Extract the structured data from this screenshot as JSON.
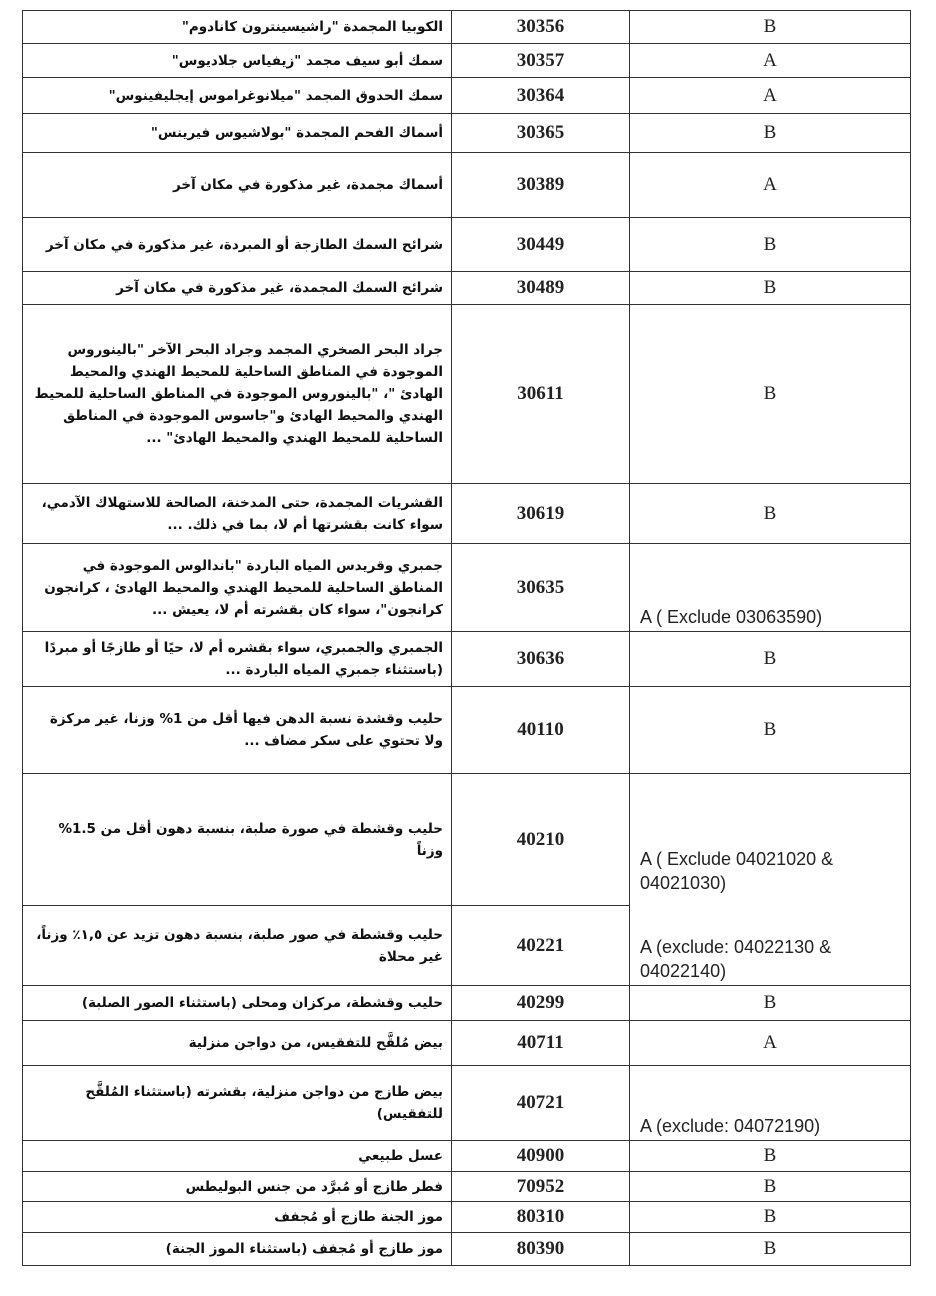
{
  "rows": [
    {
      "description": "الكوبيا المجمدة \"راشيسينترون كانادوم\"",
      "code": "30356",
      "category": "B"
    },
    {
      "description": "سمك أبو سيف مجمد \"زيفياس جلاديوس\"",
      "code": "30357",
      "category": "A"
    },
    {
      "description": "سمك الحدوق المجمد \"ميلانوغراموس إيجليفينوس\"",
      "code": "30364",
      "category": "A"
    },
    {
      "description": "أسماك الفحم المجمدة \"بولاشيوس فيرينس\"",
      "code": "30365",
      "category": "B"
    },
    {
      "description": "أسماك مجمدة، غير مذكورة في مكان آخر",
      "code": "30389",
      "category": "A"
    },
    {
      "description": "شرائح السمك الطازجة أو المبردة، غير مذكورة في مكان آخر",
      "code": "30449",
      "category": "B"
    },
    {
      "description": "شرائح السمك المجمدة، غير مذكورة في مكان آخر",
      "code": "30489",
      "category": "B"
    },
    {
      "description": "جراد البحر الصخري المجمد وجراد البحر الآخر \"بالينوروس الموجودة في المناطق الساحلية للمحيط الهندي والمحيط الهادئ \"، \"بالينوروس الموجودة في المناطق الساحلية للمحيط الهندي والمحيط الهادئ و\"جاسوس الموجودة في المناطق الساحلية للمحيط الهندي والمحيط الهادئ\" ...",
      "code": "30611",
      "category": "B"
    },
    {
      "description": "القشريات المجمدة، حتى المدخنة، الصالحة للاستهلاك الآدمي، سواء كانت بقشرتها أم لا، بما في ذلك. ...",
      "code": "30619",
      "category": "B"
    },
    {
      "description": "جمبري وقريدس المياه الباردة \"باندالوس الموجودة في المناطق الساحلية للمحيط الهندي والمحيط الهادئ ، كرانجون كرانجون\"، سواء كان بقشرته أم لا، يعيش ...",
      "code": "30635",
      "category": "A ( Exclude 03063590)"
    },
    {
      "description": "الجمبري والجمبري، سواء بقشره أم لا، حيًا أو طازجًا أو مبردًا (باستثناء جمبري المياه الباردة ...",
      "code": "30636",
      "category": "B"
    },
    {
      "description": "حليب وقشدة نسبة الدهن فيها أقل من 1% وزنا، غير مركزة ولا تحتوي على سكر مضاف ...",
      "code": "40110",
      "category": "B"
    },
    {
      "description": "حليب وقشطة في صورة صلبة، بنسبة دهون أقل من 1.5% وزناً",
      "code": "40210",
      "category": "A ( Exclude 04021020 & 04021030)"
    },
    {
      "description": "حليب وقشطة في صور صلبة، بنسبة دهون تزيد عن ١,٥٪ وزناً، غير محلاة",
      "code": "40221",
      "category": "A (exclude: 04022130 & 04022140)"
    },
    {
      "description": "حليب وقشطة، مركزان ومحلى (باستثناء الصور الصلبة)",
      "code": "40299",
      "category": "B"
    },
    {
      "description": "بيض مُلقَّح للتفقيس، من دواجن منزلية",
      "code": "40711",
      "category": "A"
    },
    {
      "description": "بيض طازج من دواجن منزلية، بقشرته (باستثناء المُلقَّح للتفقيس)",
      "code": "40721",
      "category": "A (exclude: 04072190)"
    },
    {
      "description": "عسل طبيعي",
      "code": "40900",
      "category": "B"
    },
    {
      "description": "فطر طازج أو مُبرَّد من جنس البوليطس",
      "code": "70952",
      "category": "B"
    },
    {
      "description": "موز الجنة طازج أو مُجفف",
      "code": "80310",
      "category": "B"
    },
    {
      "description": "موز طازج أو مُجفف (باستثناء الموز الجنة)",
      "code": "80390",
      "category": "B"
    }
  ]
}
